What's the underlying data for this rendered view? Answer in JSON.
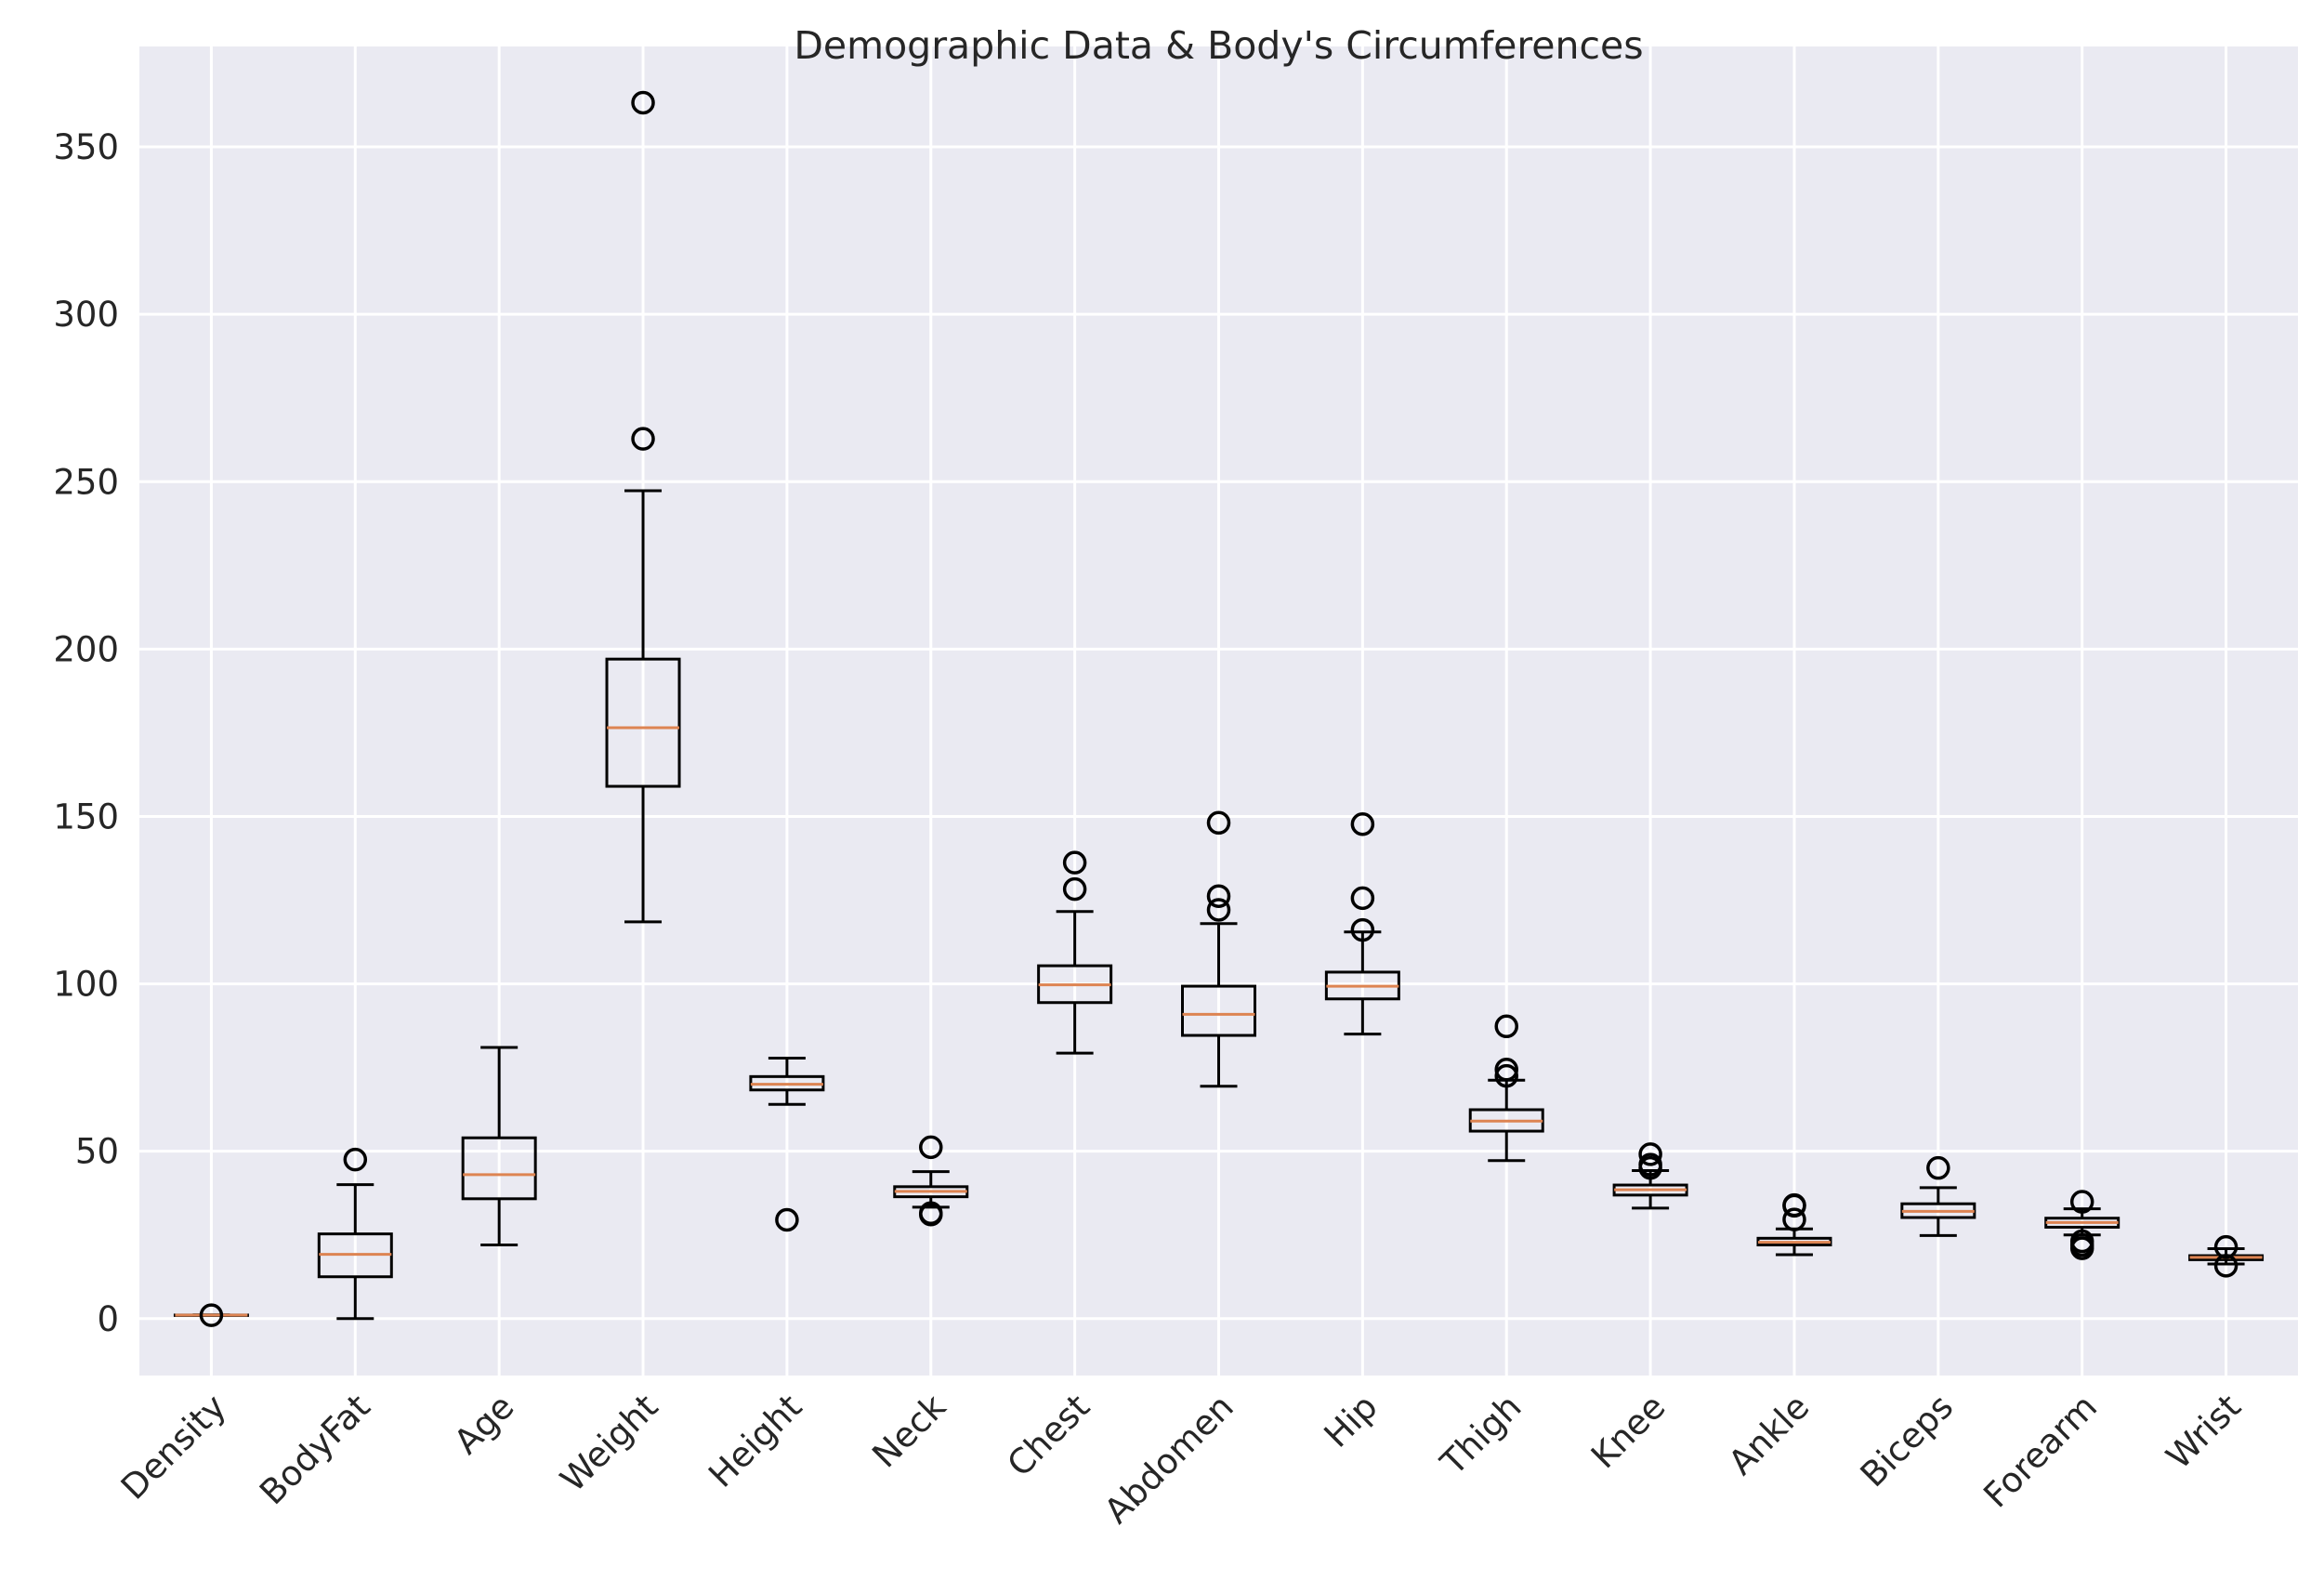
{
  "chart_data": {
    "type": "box",
    "title": "Demographic Data & Body's Circumferences",
    "xlabel": "",
    "ylabel": "",
    "ylim": [
      -17,
      380
    ],
    "yticks": [
      0,
      50,
      100,
      150,
      200,
      250,
      300,
      350
    ],
    "grid": true,
    "colors": {
      "background": "#eaeaf2",
      "grid": "#ffffff",
      "box": "#000000",
      "median": "#dd8452"
    },
    "categories": [
      "Density",
      "BodyFat",
      "Age",
      "Weight",
      "Height",
      "Neck",
      "Chest",
      "Abdomen",
      "Hip",
      "Thigh",
      "Knee",
      "Ankle",
      "Biceps",
      "Forearm",
      "Wrist"
    ],
    "boxes": [
      {
        "label": "Density",
        "whislo": 1.0,
        "q1": 1.04,
        "med": 1.05,
        "q3": 1.07,
        "whishi": 1.11,
        "fliers": [
          1.0
        ]
      },
      {
        "label": "BodyFat",
        "whislo": 0,
        "q1": 12.5,
        "med": 19.2,
        "q3": 25.3,
        "whishi": 40,
        "fliers": [
          47.5
        ]
      },
      {
        "label": "Age",
        "whislo": 22,
        "q1": 35.8,
        "med": 43,
        "q3": 54,
        "whishi": 81,
        "fliers": []
      },
      {
        "label": "Weight",
        "whislo": 118.5,
        "q1": 159,
        "med": 176.5,
        "q3": 197,
        "whishi": 247.3,
        "fliers": [
          262.8,
          363.2
        ]
      },
      {
        "label": "Height",
        "whislo": 64,
        "q1": 68.3,
        "med": 70,
        "q3": 72.3,
        "whishi": 77.8,
        "fliers": [
          29.5
        ]
      },
      {
        "label": "Neck",
        "whislo": 33.3,
        "q1": 36.4,
        "med": 38,
        "q3": 39.4,
        "whishi": 43.9,
        "fliers": [
          51.2,
          31.1,
          31.5
        ]
      },
      {
        "label": "Chest",
        "whislo": 79.3,
        "q1": 94.4,
        "med": 99.7,
        "q3": 105.4,
        "whishi": 121.6,
        "fliers": [
          128.3,
          136.2
        ]
      },
      {
        "label": "Abdomen",
        "whislo": 69.4,
        "q1": 84.6,
        "med": 90.9,
        "q3": 99.3,
        "whishi": 118,
        "fliers": [
          122.1,
          126.2,
          148.1
        ]
      },
      {
        "label": "Hip",
        "whislo": 85,
        "q1": 95.5,
        "med": 99.3,
        "q3": 103.5,
        "whishi": 115.5,
        "fliers": [
          116.1,
          125.6,
          147.7
        ]
      },
      {
        "label": "Thigh",
        "whislo": 47.2,
        "q1": 56,
        "med": 59,
        "q3": 62.4,
        "whishi": 71.2,
        "fliers": [
          72.5,
          74.4,
          87.3
        ]
      },
      {
        "label": "Knee",
        "whislo": 33,
        "q1": 36.9,
        "med": 38.5,
        "q3": 39.9,
        "whishi": 44.2,
        "fliers": [
          45,
          46,
          49.1
        ]
      },
      {
        "label": "Ankle",
        "whislo": 19.1,
        "q1": 22,
        "med": 22.8,
        "q3": 24,
        "whishi": 26.8,
        "fliers": [
          29.6,
          33.7,
          33.9
        ]
      },
      {
        "label": "Biceps",
        "whislo": 24.8,
        "q1": 30.2,
        "med": 32.05,
        "q3": 34.3,
        "whishi": 39.1,
        "fliers": [
          45
        ]
      },
      {
        "label": "Forearm",
        "whislo": 25,
        "q1": 27.3,
        "med": 28.7,
        "q3": 30,
        "whishi": 32.8,
        "fliers": [
          34.9,
          21,
          22,
          23.1
        ]
      },
      {
        "label": "Wrist",
        "whislo": 16.3,
        "q1": 17.6,
        "med": 18.3,
        "q3": 18.8,
        "whishi": 20.9,
        "fliers": [
          21.4,
          15.8
        ]
      }
    ]
  }
}
